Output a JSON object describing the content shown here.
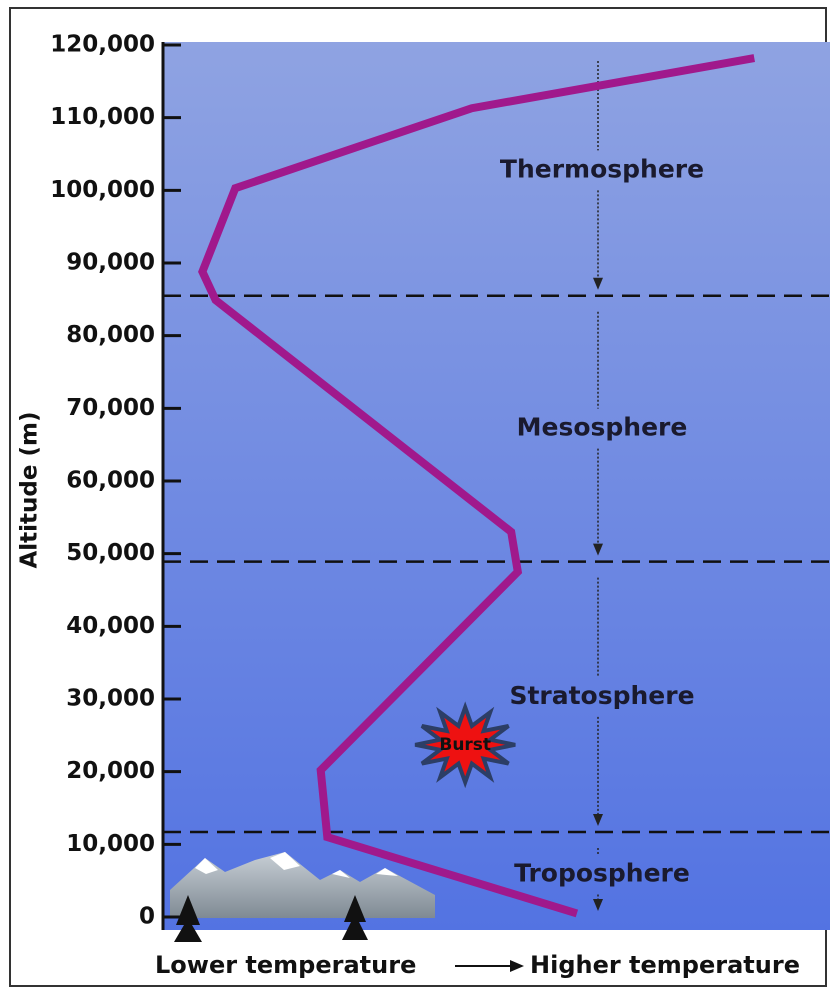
{
  "chart_data": {
    "type": "line",
    "y_label": "Altitude (m)",
    "x_label_low": "Lower temperature",
    "x_label_high": "Higher temperature",
    "color": "#a0198c",
    "x": [
      63,
      25,
      24,
      54,
      53,
      8,
      6,
      11,
      47,
      90
    ],
    "values": [
      500,
      11000,
      20200,
      47500,
      53000,
      84900,
      88800,
      100300,
      111300,
      118200
    ],
    "xlim": [
      0,
      100
    ],
    "ylim": [
      0,
      120000
    ],
    "yticks": [
      0,
      {
        "value": 10000,
        "label": "10,000"
      },
      {
        "value": 20000,
        "label": "20,000"
      },
      {
        "value": 30000,
        "label": "30,000"
      },
      {
        "value": 40000,
        "label": "40,000"
      },
      {
        "value": 50000,
        "label": "50,000"
      },
      {
        "value": 60000,
        "label": "60,000"
      },
      {
        "value": 70000,
        "label": "70,000"
      },
      {
        "value": 80000,
        "label": "80,000"
      },
      {
        "value": 90000,
        "label": "90,000"
      },
      {
        "value": 100000,
        "label": "100,000"
      },
      {
        "value": 110000,
        "label": "110,000"
      },
      {
        "value": 120000,
        "label": "120,000"
      }
    ],
    "layers": [
      "Troposphere",
      "Stratosphere",
      "Mesosphere",
      "Thermosphere"
    ],
    "layer_boundaries": [
      11700,
      48900,
      85500
    ],
    "annotations": [
      {
        "text": "Burst",
        "x": 46,
        "y": 23700
      }
    ]
  }
}
